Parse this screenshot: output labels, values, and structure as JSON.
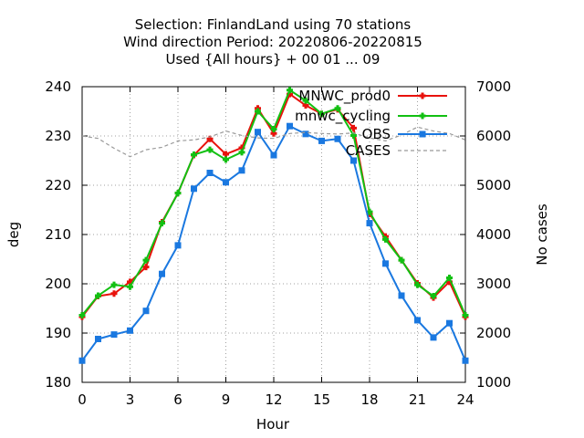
{
  "chart_data": {
    "type": "line",
    "title_lines": [
      "Selection: FinlandLand using    70 stations",
      "Wind direction   Period: 20220806-20220815",
      "Used {All hours} + 00 01 ... 09"
    ],
    "xlabel": "Hour",
    "ylabel": "deg",
    "y2label": "No cases",
    "xlim": [
      0,
      24
    ],
    "ylim": [
      180,
      240
    ],
    "y2lim": [
      1000,
      7000
    ],
    "xticks": [
      0,
      3,
      6,
      9,
      12,
      15,
      18,
      21,
      24
    ],
    "yticks": [
      180,
      190,
      200,
      210,
      220,
      230,
      240
    ],
    "y2ticks": [
      1000,
      2000,
      3000,
      4000,
      5000,
      6000,
      7000
    ],
    "grid": true,
    "legend_position": "top-right",
    "x": [
      0,
      1,
      2,
      3,
      4,
      5,
      6,
      7,
      8,
      9,
      10,
      11,
      12,
      13,
      14,
      15,
      16,
      17,
      18,
      19,
      20,
      21,
      22,
      23,
      24
    ],
    "series": [
      {
        "name": "MNWC_prod0",
        "axis": "y",
        "color": "#e8120c",
        "marker": "plus",
        "values": [
          193.3,
          197.5,
          198.0,
          200.4,
          203.4,
          212.5,
          218.4,
          226.1,
          229.4,
          226.3,
          227.6,
          235.6,
          230.5,
          238.5,
          236.2,
          234.5,
          235.4,
          231.6,
          214.2,
          209.6,
          204.8,
          200.1,
          197.2,
          200.4,
          193.3
        ]
      },
      {
        "name": "mnwc_cycling",
        "axis": "y",
        "color": "#12c012",
        "marker": "plus",
        "values": [
          193.6,
          197.6,
          199.8,
          199.4,
          204.8,
          212.3,
          218.4,
          226.2,
          227.2,
          225.2,
          226.7,
          235.0,
          231.4,
          239.3,
          237.2,
          234.5,
          235.6,
          230.1,
          214.6,
          209.0,
          204.8,
          199.8,
          197.5,
          201.2,
          193.6
        ]
      },
      {
        "name": "OBS",
        "axis": "y",
        "color": "#1a78e0",
        "marker": "square",
        "values": [
          184.4,
          188.8,
          189.7,
          190.5,
          194.5,
          202.0,
          207.8,
          219.3,
          222.5,
          220.6,
          223.0,
          230.8,
          226.1,
          232.0,
          230.4,
          229.0,
          229.4,
          225.0,
          212.3,
          204.1,
          197.6,
          192.6,
          189.1,
          192.0,
          184.4
        ]
      },
      {
        "name": "CASES",
        "axis": "y2",
        "color": "#999999",
        "dashed": true,
        "values": [
          6000,
          5950,
          5750,
          5580,
          5720,
          5770,
          5900,
          5920,
          5980,
          6100,
          6010,
          5960,
          5950,
          6050,
          6070,
          6050,
          6040,
          6060,
          5960,
          5900,
          6020,
          6180,
          6100,
          6050,
          5920
        ]
      }
    ]
  }
}
